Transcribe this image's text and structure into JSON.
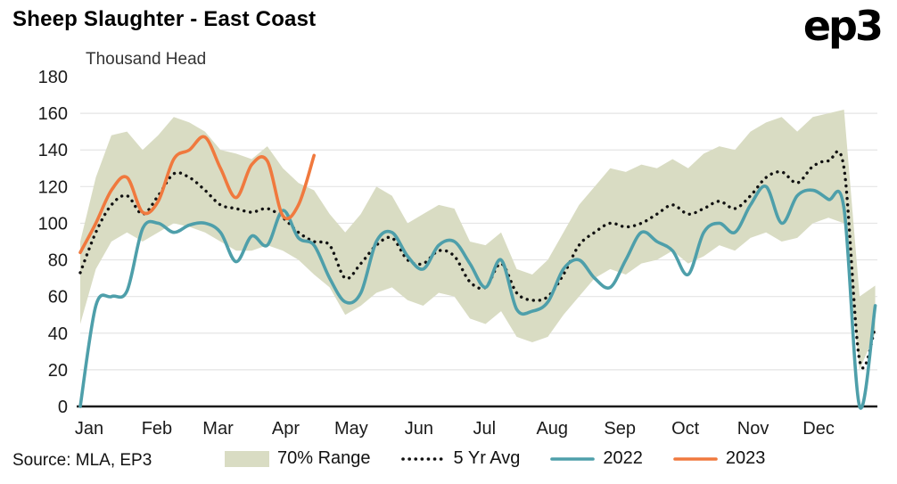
{
  "header": {
    "logo": "ep3"
  },
  "footer": {
    "source": "Source: MLA, EP3"
  },
  "colors": {
    "grid": "#e4e4e4",
    "axis": "#1a1a1a",
    "text": "#1a1a1a"
  },
  "chart_data": {
    "type": "line",
    "title": "Sheep Slaughter - East Coast",
    "ylabel": "Thousand Head",
    "xlabel": "",
    "ylim": [
      0,
      180
    ],
    "ytick_step": 20,
    "x_range_days": [
      0,
      365
    ],
    "x_unit": "weekly points, day-of-year spacing",
    "months": [
      "Jan",
      "Feb",
      "Mar",
      "Apr",
      "May",
      "Jun",
      "Jul",
      "Aug",
      "Sep",
      "Oct",
      "Nov",
      "Dec"
    ],
    "month_start_days": [
      0,
      31,
      59,
      90,
      120,
      151,
      181,
      212,
      243,
      273,
      304,
      334
    ],
    "legend_position": "bottom",
    "grid": "horizontal-only",
    "band": {
      "name": "70% Range",
      "color": "#d9dcc3",
      "upper": [
        90,
        125,
        148,
        150,
        140,
        148,
        158,
        155,
        150,
        140,
        138,
        135,
        142,
        130,
        122,
        118,
        105,
        95,
        105,
        120,
        115,
        100,
        105,
        110,
        108,
        90,
        88,
        95,
        75,
        72,
        80,
        95,
        110,
        120,
        130,
        128,
        132,
        130,
        135,
        130,
        138,
        142,
        140,
        150,
        155,
        158,
        150,
        158,
        160,
        162,
        60,
        66
      ],
      "lower": [
        45,
        75,
        90,
        95,
        90,
        95,
        100,
        98,
        95,
        90,
        85,
        85,
        88,
        85,
        80,
        72,
        65,
        50,
        55,
        62,
        65,
        58,
        55,
        62,
        60,
        48,
        45,
        52,
        38,
        35,
        38,
        50,
        60,
        70,
        75,
        72,
        78,
        80,
        85,
        78,
        82,
        88,
        85,
        92,
        95,
        90,
        92,
        100,
        103,
        100,
        20,
        40
      ]
    },
    "series": [
      {
        "name": "5 Yr Avg",
        "style": "dotted",
        "color": "#111111",
        "values": [
          73,
          95,
          110,
          115,
          105,
          115,
          127,
          125,
          118,
          110,
          108,
          106,
          108,
          103,
          95,
          90,
          88,
          70,
          78,
          88,
          92,
          80,
          78,
          85,
          82,
          68,
          65,
          78,
          62,
          58,
          60,
          72,
          88,
          95,
          100,
          98,
          100,
          105,
          110,
          105,
          108,
          112,
          108,
          115,
          125,
          128,
          122,
          131,
          134,
          130,
          25,
          43
        ]
      },
      {
        "name": "2022",
        "style": "solid",
        "color": "#4e9faa",
        "values": [
          0,
          55,
          60,
          63,
          97,
          100,
          95,
          99,
          100,
          95,
          79,
          93,
          88,
          107,
          92,
          88,
          70,
          57,
          62,
          90,
          95,
          82,
          75,
          88,
          90,
          78,
          65,
          80,
          53,
          52,
          57,
          75,
          80,
          70,
          65,
          80,
          95,
          90,
          85,
          72,
          95,
          100,
          95,
          110,
          120,
          100,
          115,
          118,
          113,
          108,
          0,
          55
        ]
      },
      {
        "name": "2023",
        "style": "solid",
        "color": "#f0793e",
        "values": [
          84,
          100,
          118,
          125,
          106,
          112,
          135,
          140,
          147,
          130,
          114,
          132,
          134,
          104,
          110,
          137
        ]
      }
    ]
  }
}
